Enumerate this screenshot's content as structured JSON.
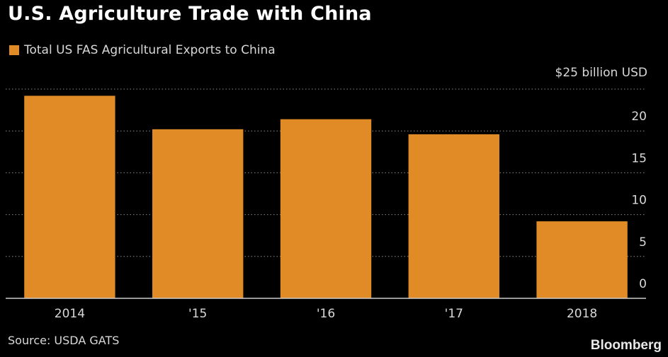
{
  "header": {
    "title": "U.S. Agriculture Trade with China"
  },
  "legend": {
    "label": "Total US FAS Agricultural Exports to China"
  },
  "unit_label": "$25 billion USD",
  "footer": {
    "source": "Source: USDA GATS",
    "brand": "Bloomberg"
  },
  "colors": {
    "bar": "#e08b25",
    "grid": "#8a8a8a",
    "axis": "#cccccc",
    "tick_text": "#d8d8d8"
  },
  "chart_data": {
    "type": "bar",
    "categories": [
      "2014",
      "'15",
      "'16",
      "'17",
      "2018"
    ],
    "series": [
      {
        "name": "Total US FAS Agricultural Exports to China",
        "values": [
          24.2,
          20.2,
          21.4,
          19.6,
          9.2
        ]
      }
    ],
    "yticks": [
      0,
      5,
      10,
      15,
      20
    ],
    "ylim": [
      0,
      25
    ],
    "ylabel": "$25 billion USD",
    "grid": true,
    "legend_position": "top-left"
  }
}
